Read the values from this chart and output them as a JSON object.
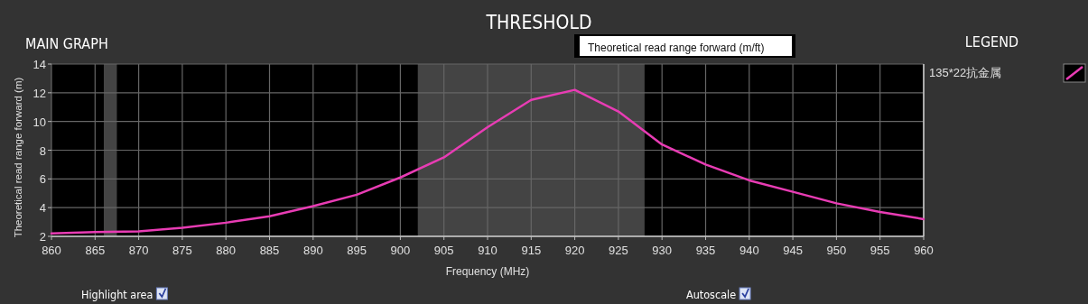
{
  "chart_data": {
    "type": "line",
    "title": "THRESHOLD",
    "xlabel": "Frequency (MHz)",
    "ylabel": "Theoretical read range forward (m)",
    "annotations": [
      "MAIN GRAPH",
      "LEGEND",
      "Theoretical read range forward (m/ft)",
      "Highlight area",
      "Autoscale"
    ],
    "x": [
      860,
      865,
      870,
      875,
      880,
      885,
      890,
      895,
      900,
      905,
      910,
      915,
      920,
      925,
      930,
      935,
      940,
      945,
      950,
      955,
      960
    ],
    "series": [
      {
        "name": "135*22抗金属",
        "color": "#e83cb4",
        "values": [
          2.2,
          2.3,
          2.35,
          2.6,
          2.95,
          3.4,
          4.1,
          4.9,
          6.1,
          7.5,
          9.6,
          11.5,
          12.2,
          10.7,
          8.4,
          7.0,
          5.9,
          5.1,
          4.3,
          3.7,
          3.2
        ]
      }
    ],
    "xlim": [
      860,
      960
    ],
    "ylim": [
      2,
      14
    ],
    "xticks": [
      860,
      865,
      870,
      875,
      880,
      885,
      890,
      895,
      900,
      905,
      910,
      915,
      920,
      925,
      930,
      935,
      940,
      945,
      950,
      955,
      960
    ],
    "yticks": [
      2,
      4,
      6,
      8,
      10,
      12,
      14
    ],
    "grid": true,
    "legend": "right",
    "marker": "none",
    "line_style": "solid",
    "bands": [
      {
        "axis": "x",
        "from": 866,
        "to": 867.5,
        "color": "#444444"
      },
      {
        "axis": "x",
        "from": 902,
        "to": 928,
        "color": "#444444"
      }
    ]
  }
}
